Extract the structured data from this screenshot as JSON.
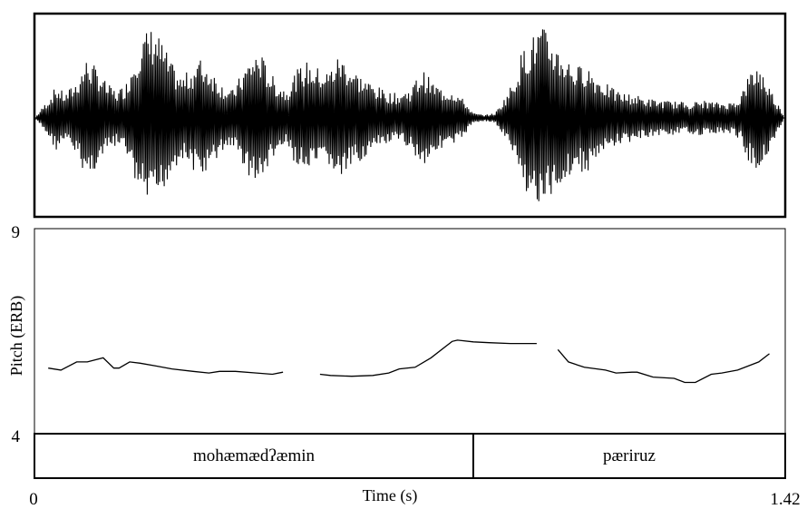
{
  "chart_data": {
    "type": "line",
    "panels": {
      "waveform": {
        "kind": "oscillogram"
      },
      "pitch": {
        "ylabel": "Pitch (ERB)",
        "xlabel": "Time (s)",
        "xlim": [
          0,
          1.42
        ],
        "ylim": [
          4,
          9
        ],
        "x_ticks": [
          "0",
          "1.42"
        ],
        "y_ticks": [
          "9",
          "4"
        ],
        "series": [
          {
            "segments": [
              {
                "x": [
                  0.026,
                  0.05,
                  0.08,
                  0.1,
                  0.13,
                  0.15,
                  0.16,
                  0.18,
                  0.2,
                  0.23,
                  0.26,
                  0.3,
                  0.33,
                  0.35,
                  0.38,
                  0.42,
                  0.45,
                  0.47
                ],
                "y": [
                  5.6,
                  5.55,
                  5.75,
                  5.75,
                  5.85,
                  5.6,
                  5.6,
                  5.75,
                  5.72,
                  5.65,
                  5.58,
                  5.52,
                  5.48,
                  5.52,
                  5.52,
                  5.48,
                  5.45,
                  5.5
                ]
              },
              {
                "x": [
                  0.54,
                  0.56,
                  0.6,
                  0.64,
                  0.67,
                  0.69,
                  0.72,
                  0.75,
                  0.79,
                  0.8,
                  0.83,
                  0.86,
                  0.9,
                  0.95
                ],
                "y": [
                  5.45,
                  5.42,
                  5.4,
                  5.42,
                  5.48,
                  5.58,
                  5.62,
                  5.85,
                  6.25,
                  6.28,
                  6.24,
                  6.22,
                  6.2,
                  6.2
                ]
              },
              {
                "x": [
                  0.99,
                  1.01,
                  1.04,
                  1.08,
                  1.1,
                  1.13,
                  1.14,
                  1.17,
                  1.21,
                  1.23,
                  1.25,
                  1.28,
                  1.3,
                  1.33,
                  1.37,
                  1.39
                ],
                "y": [
                  6.05,
                  5.75,
                  5.62,
                  5.55,
                  5.48,
                  5.5,
                  5.5,
                  5.38,
                  5.35,
                  5.25,
                  5.25,
                  5.45,
                  5.48,
                  5.55,
                  5.75,
                  5.95
                ]
              }
            ]
          }
        ]
      },
      "text_grid": {
        "boundaries": [
          0,
          0.83,
          1.42
        ],
        "intervals": [
          {
            "label": "mohæmædʔæmin",
            "start": 0,
            "end": 0.83
          },
          {
            "label": "pæriruz",
            "start": 0.83,
            "end": 1.42
          }
        ]
      }
    }
  }
}
